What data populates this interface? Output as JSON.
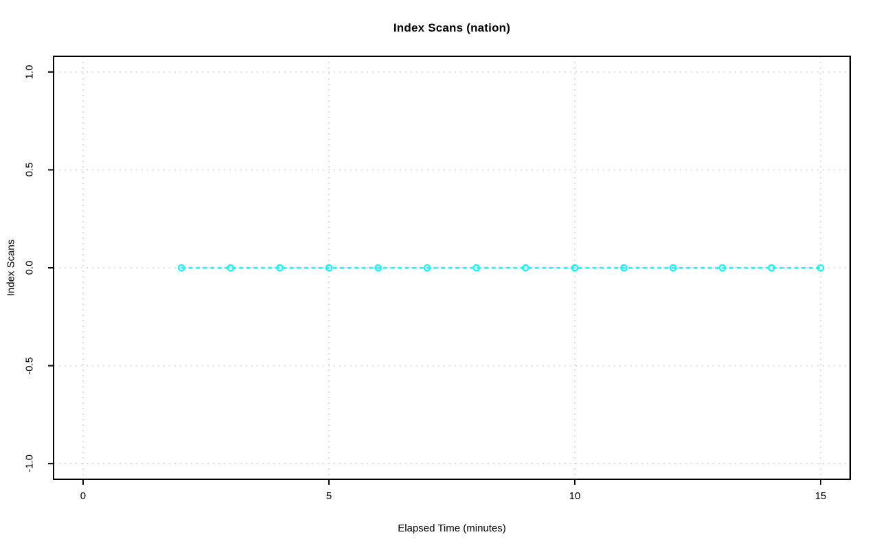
{
  "page": {
    "background_color": "#ffffff"
  },
  "chart_data": {
    "type": "line",
    "title": "Index Scans (nation)",
    "xlabel": "Elapsed Time (minutes)",
    "ylabel": "Index Scans",
    "x": [
      2,
      3,
      4,
      5,
      6,
      7,
      8,
      9,
      10,
      11,
      12,
      13,
      14,
      15
    ],
    "series": [
      {
        "name": "index-scans-nation",
        "color": "#00ffff",
        "marker": "open-circle",
        "line_style": "dashed",
        "values": [
          0,
          0,
          0,
          0,
          0,
          0,
          0,
          0,
          0,
          0,
          0,
          0,
          0,
          0
        ]
      }
    ],
    "x_tick_values": [
      0,
      5,
      10,
      15
    ],
    "x_tick_labels": [
      "0",
      "5",
      "10",
      "15"
    ],
    "y_tick_values": [
      -1.0,
      -0.5,
      0.0,
      0.5,
      1.0
    ],
    "y_tick_labels": [
      "-1.0",
      "-0.5",
      "0.0",
      "0.5",
      "1.0"
    ],
    "xlim": [
      -0.6,
      15.6
    ],
    "ylim": [
      -1.08,
      1.08
    ],
    "grid": true,
    "grid_style": "dotted",
    "grid_color": "#d7d7d7",
    "axis_color": "#000000",
    "legend_position": "none"
  }
}
